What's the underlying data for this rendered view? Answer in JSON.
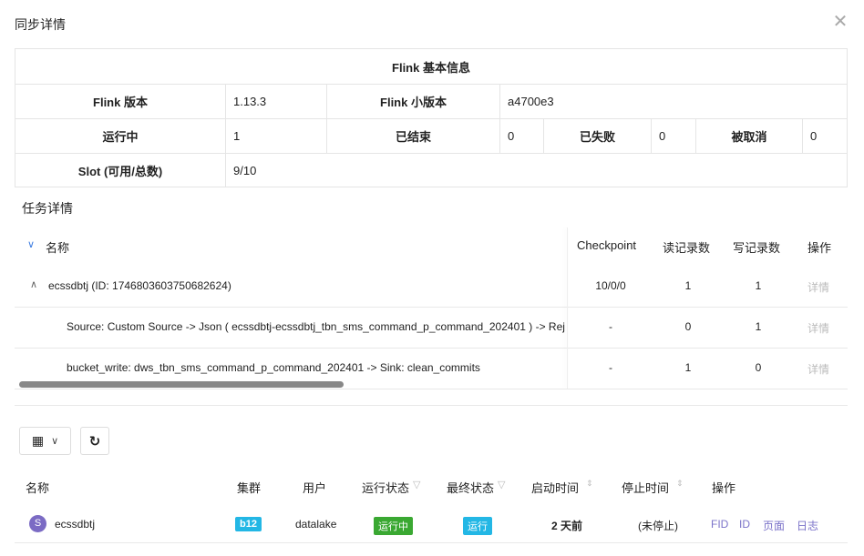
{
  "dialog": {
    "title": "同步详情",
    "close_icon": "close-icon"
  },
  "flink_info": {
    "title": "Flink 基本信息",
    "version_label": "Flink 版本",
    "version": "1.13.3",
    "minor_label": "Flink 小版本",
    "minor": "a4700e3",
    "running_label": "运行中",
    "running": "1",
    "finished_label": "已结束",
    "finished": "0",
    "failed_label": "已失败",
    "failed": "0",
    "cancelled_label": "被取消",
    "cancelled": "0",
    "slot_label": "Slot (可用/总数)",
    "slot": "9/10"
  },
  "task_detail": {
    "title": "任务详情",
    "columns": [
      "名称",
      "Checkpoint",
      "读记录数",
      "写记录数",
      "操作"
    ],
    "rows": [
      {
        "name": "ecssdbtj (ID: 1746803603750682624)",
        "checkpoint": "10/0/0",
        "read": "1",
        "write": "1",
        "action": "详情"
      },
      {
        "name": "Source: Custom Source -> Json ( ecssdbtj-ecssdbtj_tbn_sms_command_p_command_202401 ) -> Rej",
        "checkpoint": "-",
        "read": "0",
        "write": "1",
        "action": "详情"
      },
      {
        "name": "bucket_write: dws_tbn_sms_command_p_command_202401 -> Sink: clean_commits",
        "checkpoint": "-",
        "read": "1",
        "write": "0",
        "action": "详情"
      }
    ]
  },
  "jobs": {
    "columns": [
      "名称",
      "集群",
      "用户",
      "运行状态",
      "最终状态",
      "启动时间",
      "停止时间",
      "操作"
    ],
    "rows": [
      {
        "avatar": "S",
        "name": "ecssdbtj",
        "cluster": "b12",
        "user": "datalake",
        "run_state": "运行中",
        "final_state": "运行",
        "start": "2 天前",
        "stop": "(未停止)",
        "actions": [
          "FID",
          "ID",
          "页面",
          "日志"
        ]
      }
    ]
  },
  "colors": {
    "cluster_tag": "#23b7e5",
    "running_tag": "#3aa832",
    "final_tag": "#23b7e5",
    "link": "#7b73c9",
    "avatar": "#7b6bc4"
  }
}
